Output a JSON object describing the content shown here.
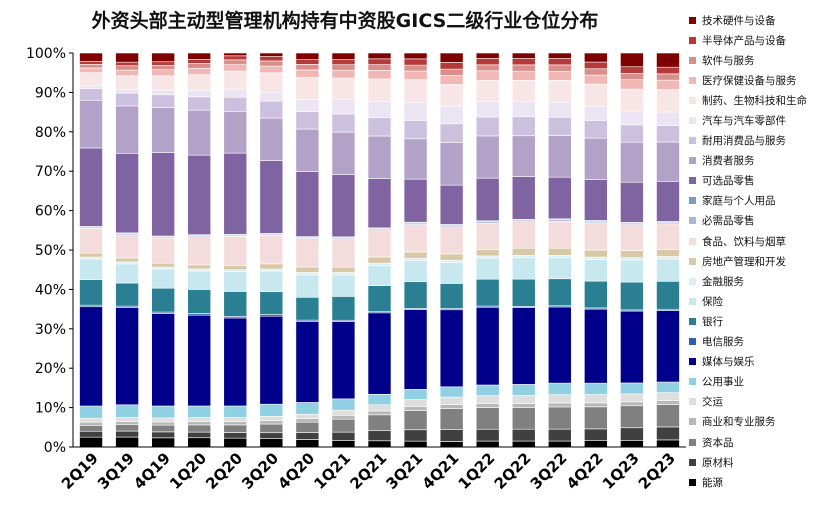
{
  "chart_data": {
    "type": "bar",
    "stacked": true,
    "title": "外资头部主动型管理机构持有中资股GICS二级行业仓位分布",
    "xlabel": "",
    "ylabel": "",
    "ylim": [
      0,
      100
    ],
    "y_ticks": [
      "0%",
      "10%",
      "20%",
      "30%",
      "40%",
      "50%",
      "60%",
      "70%",
      "80%",
      "90%",
      "100%"
    ],
    "grid": false,
    "legend_position": "right",
    "categories": [
      "2Q19",
      "3Q19",
      "4Q19",
      "1Q20",
      "2Q20",
      "3Q20",
      "4Q20",
      "1Q21",
      "2Q21",
      "3Q21",
      "4Q21",
      "1Q22",
      "2Q22",
      "3Q22",
      "4Q22",
      "1Q23",
      "2Q23"
    ],
    "series": [
      {
        "name": "能源",
        "color": "#000000",
        "values": [
          2.5,
          2.5,
          2.3,
          2.3,
          2.2,
          2.1,
          1.9,
          1.7,
          1.6,
          1.5,
          1.4,
          1.5,
          1.5,
          1.5,
          1.6,
          1.7,
          1.8
        ]
      },
      {
        "name": "原材料",
        "color": "#404040",
        "values": [
          1.5,
          1.5,
          1.5,
          1.4,
          1.4,
          1.5,
          1.8,
          2.1,
          2.6,
          2.9,
          3.0,
          3.0,
          3.0,
          3.0,
          3.0,
          3.2,
          3.3
        ]
      },
      {
        "name": "资本品",
        "color": "#808080",
        "values": [
          1.5,
          1.6,
          1.7,
          1.8,
          1.9,
          2.2,
          2.6,
          3.3,
          4.1,
          4.9,
          5.4,
          5.5,
          5.5,
          5.6,
          5.6,
          5.6,
          5.7
        ]
      },
      {
        "name": "商业和专业服务",
        "color": "#b8b8b8",
        "values": [
          0.8,
          0.8,
          0.8,
          0.8,
          0.8,
          0.9,
          0.9,
          1.0,
          1.0,
          1.0,
          1.0,
          1.0,
          1.0,
          1.0,
          1.0,
          1.0,
          1.0
        ]
      },
      {
        "name": "交运",
        "color": "#dedede",
        "values": [
          1.0,
          1.0,
          1.0,
          1.0,
          1.0,
          1.0,
          1.1,
          1.3,
          1.6,
          1.8,
          1.9,
          2.0,
          2.0,
          2.1,
          2.1,
          2.0,
          2.0
        ]
      },
      {
        "name": "公用事业",
        "color": "#8fd0e3",
        "values": [
          3.1,
          3.2,
          3.0,
          2.9,
          2.9,
          3.1,
          3.0,
          2.9,
          2.7,
          2.6,
          2.6,
          2.7,
          2.8,
          2.9,
          2.9,
          2.8,
          2.7
        ]
      },
      {
        "name": "媒体与娱乐",
        "color": "#00008b",
        "values": [
          25.2,
          24.4,
          23.2,
          22.6,
          21.9,
          22.2,
          20.6,
          19.8,
          21.0,
          20.4,
          19.6,
          19.7,
          19.4,
          19.2,
          18.8,
          18.3,
          18.2
        ]
      },
      {
        "name": "电信服务",
        "color": "#2e5fa4",
        "values": [
          0.4,
          0.4,
          0.4,
          0.4,
          0.4,
          0.4,
          0.3,
          0.3,
          0.3,
          0.3,
          0.3,
          0.3,
          0.3,
          0.3,
          0.3,
          0.3,
          0.3
        ]
      },
      {
        "name": "银行",
        "color": "#2b7f93",
        "values": [
          6.5,
          5.8,
          6.0,
          6.0,
          6.2,
          5.8,
          5.8,
          6.1,
          6.7,
          6.8,
          6.4,
          6.8,
          6.9,
          6.8,
          6.8,
          7.1,
          7.1
        ]
      },
      {
        "name": "保险",
        "color": "#c8e8f0",
        "values": [
          5.2,
          4.8,
          4.8,
          4.6,
          4.9,
          5.2,
          5.7,
          5.5,
          5.2,
          5.4,
          5.3,
          5.3,
          5.4,
          5.3,
          5.5,
          5.6,
          5.7
        ]
      },
      {
        "name": "金融服务",
        "color": "#dbeef4",
        "values": [
          0.5,
          0.5,
          0.5,
          0.5,
          0.5,
          0.5,
          0.6,
          0.6,
          0.6,
          0.6,
          0.6,
          0.6,
          0.6,
          0.6,
          0.6,
          0.6,
          0.6
        ]
      },
      {
        "name": "房地产管理和开发",
        "color": "#d8c9a6",
        "values": [
          1.0,
          1.0,
          1.0,
          1.0,
          1.0,
          1.3,
          1.4,
          1.4,
          1.6,
          1.6,
          1.6,
          1.6,
          1.8,
          1.8,
          1.8,
          1.8,
          1.8
        ]
      },
      {
        "name": "食品、饮料与烟草",
        "color": "#f4dcdc",
        "values": [
          6.3,
          5.8,
          6.3,
          7.0,
          7.3,
          7.2,
          7.2,
          7.2,
          7.0,
          7.0,
          6.9,
          6.7,
          6.7,
          6.8,
          6.9,
          6.6,
          6.5
        ]
      },
      {
        "name": "必需品零售",
        "color": "#a9b8d8",
        "values": [
          0.3,
          0.3,
          0.3,
          0.3,
          0.3,
          0.3,
          0.3,
          0.3,
          0.3,
          0.4,
          0.4,
          0.4,
          0.4,
          0.4,
          0.4,
          0.4,
          0.4
        ]
      },
      {
        "name": "家庭与个人用品",
        "color": "#7a9cc6",
        "values": [
          0.2,
          0.2,
          0.2,
          0.2,
          0.2,
          0.2,
          0.2,
          0.2,
          0.2,
          0.2,
          0.2,
          0.2,
          0.2,
          0.2,
          0.2,
          0.2,
          0.2
        ]
      },
      {
        "name": "可选品零售",
        "color": "#8064a2",
        "values": [
          19.9,
          20.0,
          21.0,
          19.8,
          20.2,
          18.4,
          16.5,
          15.9,
          12.7,
          11.0,
          10.0,
          10.8,
          10.8,
          10.5,
          10.4,
          10.2,
          10.2
        ]
      },
      {
        "name": "消费者服务",
        "color": "#b3a2c7",
        "values": [
          12.1,
          11.9,
          11.3,
          11.2,
          10.4,
          10.7,
          10.8,
          10.9,
          11.0,
          10.3,
          10.8,
          10.7,
          10.3,
          10.5,
          10.5,
          10.2,
          10.0
        ]
      },
      {
        "name": "耐用消费品与服务",
        "color": "#cbc0dd",
        "values": [
          3.0,
          3.2,
          3.2,
          3.3,
          3.5,
          4.3,
          4.4,
          4.6,
          4.7,
          4.7,
          4.8,
          4.8,
          4.8,
          4.6,
          4.5,
          4.4,
          4.2
        ]
      },
      {
        "name": "汽车与汽车零部件",
        "color": "#ebe4f2",
        "values": [
          0.8,
          1.0,
          1.2,
          1.6,
          2.0,
          2.2,
          3.1,
          3.8,
          4.2,
          4.5,
          4.5,
          3.9,
          3.8,
          3.8,
          3.6,
          3.5,
          3.4
        ]
      },
      {
        "name": "制药、生物科技和生命",
        "color": "#f8e6e6",
        "values": [
          3.2,
          3.4,
          3.6,
          3.9,
          4.5,
          4.9,
          5.6,
          5.4,
          5.8,
          5.9,
          5.5,
          5.4,
          5.4,
          5.5,
          5.6,
          5.6,
          5.7
        ]
      },
      {
        "name": "医疗保健设备与服务",
        "color": "#f0b7b5",
        "values": [
          1.2,
          1.4,
          1.5,
          1.6,
          1.6,
          1.7,
          1.9,
          2.0,
          2.2,
          2.2,
          2.3,
          2.4,
          2.3,
          2.3,
          2.3,
          2.4,
          2.4
        ]
      },
      {
        "name": "软件与服务",
        "color": "#d98e8c",
        "values": [
          0.9,
          1.1,
          1.1,
          1.2,
          1.2,
          1.3,
          1.4,
          1.4,
          1.5,
          1.5,
          1.6,
          1.5,
          1.6,
          1.6,
          1.6,
          1.6,
          1.6
        ]
      },
      {
        "name": "半导体产品与设备",
        "color": "#b63a3a",
        "values": [
          0.8,
          0.9,
          0.9,
          1.0,
          1.0,
          1.1,
          1.2,
          1.3,
          1.5,
          1.6,
          1.7,
          1.6,
          1.6,
          1.6,
          1.7,
          1.7,
          1.7
        ]
      },
      {
        "name": "技术硬件与设备",
        "color": "#7f0000",
        "values": [
          2.1,
          2.3,
          2.2,
          1.6,
          0.7,
          0.9,
          1.7,
          1.7,
          1.5,
          1.5,
          2.4,
          1.4,
          1.4,
          1.4,
          2.3,
          3.5,
          3.6
        ]
      }
    ]
  }
}
